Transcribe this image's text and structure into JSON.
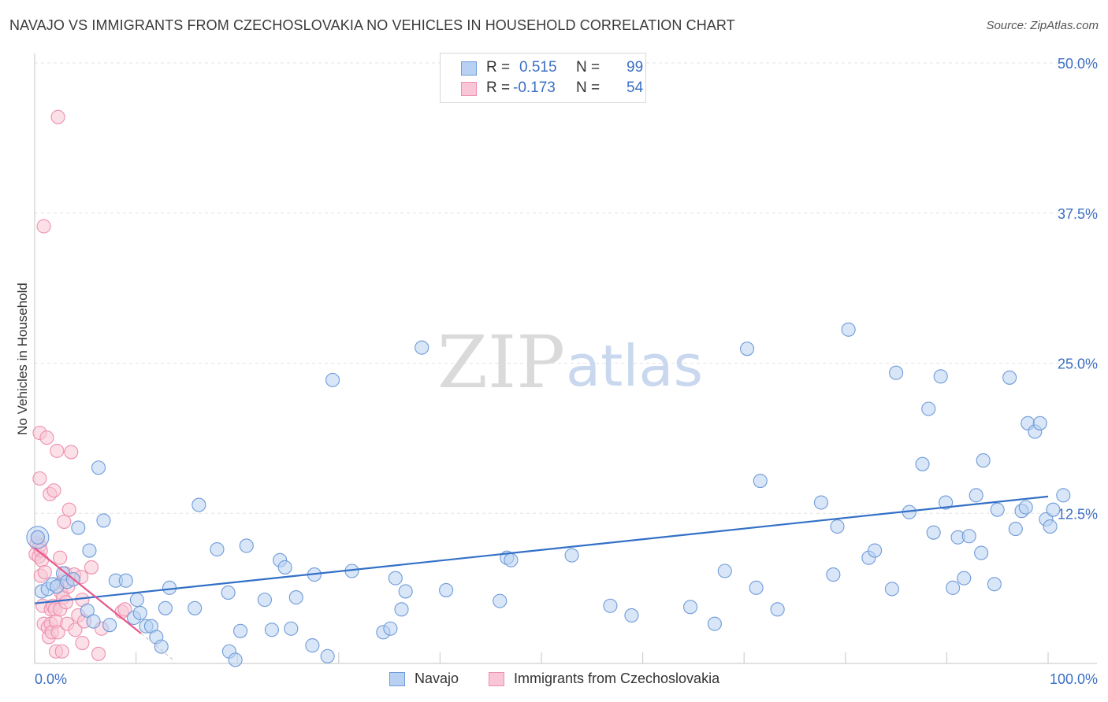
{
  "title": "NAVAJO VS IMMIGRANTS FROM CZECHOSLOVAKIA NO VEHICLES IN HOUSEHOLD CORRELATION CHART",
  "source": "Source: ZipAtlas.com",
  "watermark": {
    "zip": "ZIP",
    "atlas": "atlas"
  },
  "colors": {
    "navajo_fill": "#b8d1f2",
    "navajo_stroke": "#6f9bd8",
    "navajo_line": "#3370c7",
    "czech_fill": "#f8c6d6",
    "czech_stroke": "#ee8fae",
    "czech_line": "#e8588c",
    "value_text": "#3b6fc4",
    "grid": "#e3e3e3"
  },
  "legend_top": {
    "rows": [
      {
        "r_label": "R =",
        "r_value": "0.515",
        "n_label": "N =",
        "n_value": "99"
      },
      {
        "r_label": "R =",
        "r_value": "-0.173",
        "n_label": "N =",
        "n_value": "54"
      }
    ]
  },
  "legend_bottom": {
    "items": [
      "Navajo",
      "Immigrants from Czechoslovakia"
    ]
  },
  "chart_data": {
    "type": "scatter",
    "title": "NAVAJO VS IMMIGRANTS FROM CZECHOSLOVAKIA NO VEHICLES IN HOUSEHOLD CORRELATION CHART",
    "xlabel": "",
    "ylabel": "No Vehicles in Household",
    "xlim": [
      0,
      100
    ],
    "ylim": [
      0,
      50
    ],
    "x_tick_labels": [
      "0.0%",
      "100.0%"
    ],
    "y_tick_labels": [
      "12.5%",
      "25.0%",
      "37.5%",
      "50.0%"
    ],
    "y_ticks": [
      12.5,
      25.0,
      37.5,
      50.0
    ],
    "x_minor_ticks": [
      0,
      10,
      20,
      30,
      40,
      50,
      60,
      70,
      80,
      90,
      100
    ],
    "grid": true,
    "legend_position": "top-center",
    "series": [
      {
        "name": "Navajo",
        "r": 0.515,
        "n": 99,
        "trend": {
          "x": [
            0,
            100
          ],
          "y": [
            5.0,
            13.9
          ]
        },
        "points": [
          [
            0.3,
            10.5
          ],
          [
            0.7,
            6.0
          ],
          [
            1.3,
            6.2
          ],
          [
            1.8,
            6.6
          ],
          [
            2.2,
            6.4
          ],
          [
            2.8,
            7.5
          ],
          [
            3.2,
            6.8
          ],
          [
            3.8,
            7.0
          ],
          [
            4.3,
            11.3
          ],
          [
            5.2,
            4.4
          ],
          [
            5.4,
            9.4
          ],
          [
            5.8,
            3.5
          ],
          [
            6.3,
            16.3
          ],
          [
            6.8,
            11.9
          ],
          [
            7.4,
            3.2
          ],
          [
            8.0,
            6.9
          ],
          [
            9.0,
            6.9
          ],
          [
            9.8,
            3.8
          ],
          [
            10.1,
            5.3
          ],
          [
            10.4,
            4.2
          ],
          [
            11.0,
            3.1
          ],
          [
            11.5,
            3.1
          ],
          [
            12.0,
            2.2
          ],
          [
            12.5,
            1.4
          ],
          [
            12.9,
            4.6
          ],
          [
            13.3,
            6.3
          ],
          [
            15.8,
            4.6
          ],
          [
            16.2,
            13.2
          ],
          [
            18.0,
            9.5
          ],
          [
            19.1,
            5.9
          ],
          [
            19.2,
            1.0
          ],
          [
            19.8,
            0.3
          ],
          [
            20.3,
            2.7
          ],
          [
            20.9,
            9.8
          ],
          [
            22.7,
            5.3
          ],
          [
            23.4,
            2.8
          ],
          [
            24.2,
            8.6
          ],
          [
            24.7,
            8.0
          ],
          [
            25.3,
            2.9
          ],
          [
            25.8,
            5.5
          ],
          [
            27.4,
            1.5
          ],
          [
            27.6,
            7.4
          ],
          [
            28.9,
            0.6
          ],
          [
            29.4,
            23.6
          ],
          [
            31.3,
            7.7
          ],
          [
            34.4,
            2.6
          ],
          [
            35.1,
            2.9
          ],
          [
            35.6,
            7.1
          ],
          [
            36.2,
            4.5
          ],
          [
            36.6,
            6.0
          ],
          [
            38.2,
            26.3
          ],
          [
            40.6,
            6.1
          ],
          [
            45.9,
            5.2
          ],
          [
            46.6,
            8.8
          ],
          [
            47.0,
            8.6
          ],
          [
            53.0,
            9.0
          ],
          [
            56.8,
            4.8
          ],
          [
            58.9,
            4.0
          ],
          [
            64.7,
            4.7
          ],
          [
            67.1,
            3.3
          ],
          [
            68.1,
            7.7
          ],
          [
            70.3,
            26.2
          ],
          [
            71.2,
            6.3
          ],
          [
            71.6,
            15.2
          ],
          [
            73.3,
            4.5
          ],
          [
            77.6,
            13.4
          ],
          [
            78.8,
            7.4
          ],
          [
            79.2,
            11.4
          ],
          [
            80.3,
            27.8
          ],
          [
            82.3,
            8.8
          ],
          [
            82.9,
            9.4
          ],
          [
            84.6,
            6.2
          ],
          [
            85.0,
            24.2
          ],
          [
            86.3,
            12.6
          ],
          [
            87.6,
            16.6
          ],
          [
            88.2,
            21.2
          ],
          [
            88.7,
            10.9
          ],
          [
            89.4,
            23.9
          ],
          [
            89.9,
            13.4
          ],
          [
            90.6,
            6.3
          ],
          [
            91.1,
            10.5
          ],
          [
            91.7,
            7.1
          ],
          [
            92.2,
            10.6
          ],
          [
            92.9,
            14.0
          ],
          [
            93.4,
            9.2
          ],
          [
            93.6,
            16.9
          ],
          [
            94.7,
            6.6
          ],
          [
            95.0,
            12.8
          ],
          [
            96.2,
            23.8
          ],
          [
            96.8,
            11.2
          ],
          [
            97.4,
            12.7
          ],
          [
            97.8,
            13.0
          ],
          [
            98.0,
            20.0
          ],
          [
            98.7,
            19.3
          ],
          [
            99.2,
            20.0
          ],
          [
            99.8,
            12.0
          ],
          [
            100.2,
            11.4
          ],
          [
            100.5,
            12.8
          ],
          [
            101.5,
            14.0
          ]
        ]
      },
      {
        "name": "Immigrants from Czechoslovakia",
        "r": -0.173,
        "n": 54,
        "trend": {
          "x": [
            0,
            10.5
          ],
          "y": [
            9.6,
            2.5
          ]
        },
        "points": [
          [
            0.1,
            9.1
          ],
          [
            0.2,
            10.0
          ],
          [
            0.3,
            10.5
          ],
          [
            0.4,
            8.9
          ],
          [
            0.5,
            9.8
          ],
          [
            0.6,
            9.4
          ],
          [
            0.7,
            8.6
          ],
          [
            0.5,
            19.2
          ],
          [
            0.5,
            15.4
          ],
          [
            0.6,
            7.3
          ],
          [
            0.8,
            4.8
          ],
          [
            0.9,
            3.3
          ],
          [
            1.0,
            7.6
          ],
          [
            1.2,
            18.8
          ],
          [
            1.3,
            3.0
          ],
          [
            1.4,
            2.2
          ],
          [
            1.5,
            14.1
          ],
          [
            1.6,
            4.5
          ],
          [
            1.6,
            3.3
          ],
          [
            1.7,
            2.6
          ],
          [
            1.8,
            4.8
          ],
          [
            1.9,
            14.4
          ],
          [
            2.0,
            4.5
          ],
          [
            2.1,
            1.0
          ],
          [
            2.1,
            3.5
          ],
          [
            2.2,
            17.7
          ],
          [
            2.3,
            2.6
          ],
          [
            2.3,
            45.5
          ],
          [
            2.5,
            4.5
          ],
          [
            2.5,
            8.8
          ],
          [
            2.6,
            5.9
          ],
          [
            2.7,
            1.0
          ],
          [
            2.7,
            6.8
          ],
          [
            2.8,
            5.5
          ],
          [
            2.9,
            11.8
          ],
          [
            3.0,
            7.5
          ],
          [
            3.1,
            5.1
          ],
          [
            3.2,
            3.3
          ],
          [
            3.3,
            6.4
          ],
          [
            3.4,
            12.8
          ],
          [
            3.6,
            17.6
          ],
          [
            3.9,
            7.4
          ],
          [
            4.0,
            2.8
          ],
          [
            4.3,
            4.0
          ],
          [
            4.6,
            7.2
          ],
          [
            4.7,
            5.3
          ],
          [
            4.7,
            1.7
          ],
          [
            4.9,
            3.5
          ],
          [
            5.6,
            8.0
          ],
          [
            6.3,
            0.8
          ],
          [
            6.6,
            2.9
          ],
          [
            8.6,
            4.3
          ],
          [
            8.9,
            4.5
          ],
          [
            0.9,
            36.4
          ]
        ]
      }
    ]
  }
}
